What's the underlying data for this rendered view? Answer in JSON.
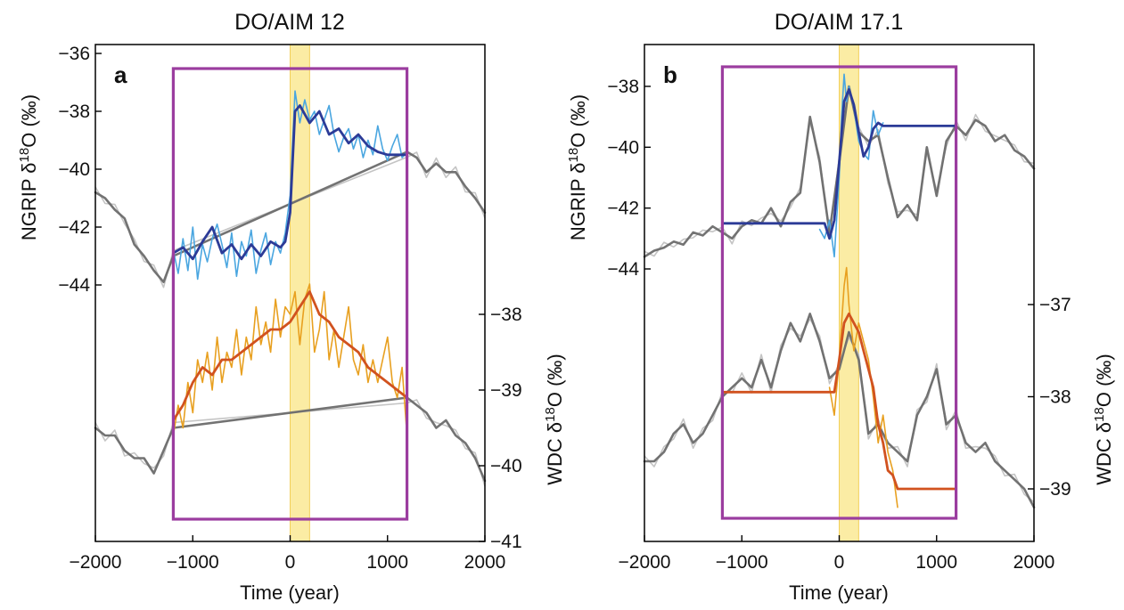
{
  "colors": {
    "ngrip_raw": "#4aa6e0",
    "ngrip_smooth": "#2c3b97",
    "wdc_raw": "#e8a020",
    "wdc_smooth": "#d1521f",
    "background_raw": "#c4c4c4",
    "background_smooth": "#6b6b6b",
    "window_box": "#9b3d9f",
    "transition_band": "#fbeca4",
    "transition_band_edge": "#f2cf5a"
  },
  "chart_data": [
    {
      "type": "line",
      "panel_letter": "a",
      "title": "DO/AIM 12",
      "xlabel": "Time (year)",
      "ylabel_left": "NGRIP δ18O (‰)",
      "ylabel_right": "WDC δ18O (‰)",
      "xlim": [
        -2000,
        2000
      ],
      "xticks": [
        -2000,
        -1000,
        0,
        1000,
        2000
      ],
      "xtick_labels": [
        "−2000",
        "−1000",
        "0",
        "1000",
        "2000"
      ],
      "left_axis": {
        "ticks": [
          -36,
          -38,
          -40,
          -42,
          -44
        ],
        "tick_labels": [
          "−36",
          "−38",
          "−40",
          "−42",
          "−44"
        ]
      },
      "right_axis": {
        "ticks": [
          -38,
          -39,
          -40,
          -41
        ],
        "tick_labels": [
          "−38",
          "−39",
          "−40",
          "−41"
        ]
      },
      "window": [
        -1200,
        1200
      ],
      "transition_band": [
        0,
        200
      ],
      "series": [
        {
          "axis": "left",
          "role": "background",
          "x": [
            -2000,
            -1900,
            -1800,
            -1700,
            -1600,
            -1500,
            -1400,
            -1300,
            -1200,
            1200,
            1300,
            1400,
            1500,
            1600,
            1700,
            1800,
            1900,
            2000
          ],
          "y": [
            -40.8,
            -41.0,
            -41.4,
            -41.7,
            -42.6,
            -43.0,
            -43.5,
            -43.9,
            -43.0,
            -39.4,
            -39.6,
            -40.1,
            -39.8,
            -40.1,
            -40.1,
            -40.6,
            -41.0,
            -41.5
          ]
        },
        {
          "axis": "left",
          "role": "raw",
          "x": [
            -1200,
            -1150,
            -1100,
            -1050,
            -1000,
            -950,
            -900,
            -850,
            -800,
            -750,
            -700,
            -650,
            -600,
            -550,
            -500,
            -450,
            -400,
            -350,
            -300,
            -250,
            -200,
            -150,
            -100,
            -50,
            0,
            50,
            100,
            150,
            200,
            250,
            300,
            350,
            400,
            450,
            500,
            550,
            600,
            650,
            700,
            750,
            800,
            850,
            900,
            950,
            1000,
            1050,
            1100,
            1150,
            1200
          ],
          "y": [
            -42.8,
            -43.6,
            -42.4,
            -43.5,
            -42.0,
            -43.8,
            -42.6,
            -43.2,
            -42.4,
            -41.9,
            -42.6,
            -43.4,
            -42.2,
            -43.7,
            -42.5,
            -43.0,
            -42.1,
            -43.6,
            -42.8,
            -42.2,
            -43.3,
            -42.5,
            -42.9,
            -42.2,
            -40.9,
            -37.3,
            -38.4,
            -37.6,
            -38.3,
            -38.0,
            -38.8,
            -38.3,
            -37.8,
            -38.8,
            -39.4,
            -38.9,
            -38.6,
            -39.3,
            -38.8,
            -39.6,
            -39.0,
            -39.5,
            -38.5,
            -39.3,
            -39.7,
            -39.2,
            -38.8,
            -39.6,
            -39.4
          ]
        },
        {
          "axis": "left",
          "role": "smooth",
          "x": [
            -1200,
            -1100,
            -1000,
            -900,
            -800,
            -700,
            -600,
            -500,
            -400,
            -300,
            -200,
            -100,
            -50,
            0,
            50,
            100,
            200,
            300,
            400,
            500,
            600,
            700,
            800,
            900,
            1000,
            1100,
            1200
          ],
          "y": [
            -42.9,
            -42.7,
            -43.1,
            -42.5,
            -42.0,
            -42.9,
            -42.6,
            -43.1,
            -42.6,
            -43.0,
            -42.5,
            -42.7,
            -42.5,
            -41.5,
            -38.0,
            -37.8,
            -38.4,
            -38.0,
            -38.8,
            -38.6,
            -39.1,
            -38.8,
            -39.2,
            -39.4,
            -39.5,
            -39.5,
            -39.5
          ]
        },
        {
          "axis": "right",
          "role": "background",
          "x": [
            -2000,
            -1900,
            -1800,
            -1700,
            -1600,
            -1500,
            -1400,
            -1300,
            -1200,
            1200,
            1300,
            1400,
            1500,
            1600,
            1700,
            1800,
            1900,
            2000
          ],
          "y": [
            -39.5,
            -39.6,
            -39.6,
            -39.8,
            -39.9,
            -39.9,
            -40.1,
            -39.8,
            -39.5,
            -39.1,
            -39.2,
            -39.3,
            -39.5,
            -39.4,
            -39.6,
            -39.7,
            -39.9,
            -40.2
          ]
        },
        {
          "axis": "right",
          "role": "raw",
          "x": [
            -1200,
            -1150,
            -1100,
            -1050,
            -1000,
            -950,
            -900,
            -850,
            -800,
            -750,
            -700,
            -650,
            -600,
            -550,
            -500,
            -450,
            -400,
            -350,
            -300,
            -250,
            -200,
            -150,
            -100,
            -50,
            0,
            50,
            100,
            150,
            200,
            250,
            300,
            350,
            400,
            450,
            500,
            550,
            600,
            650,
            700,
            750,
            800,
            850,
            900,
            950,
            1000,
            1050,
            1100,
            1150,
            1200
          ],
          "y": [
            -39.6,
            -39.2,
            -39.5,
            -38.9,
            -39.3,
            -38.6,
            -38.9,
            -38.5,
            -39.0,
            -38.3,
            -38.9,
            -38.5,
            -38.7,
            -38.2,
            -38.8,
            -38.3,
            -38.6,
            -37.9,
            -38.4,
            -38.1,
            -38.5,
            -37.8,
            -38.3,
            -37.9,
            -38.0,
            -37.7,
            -38.4,
            -37.8,
            -37.6,
            -38.5,
            -38.2,
            -37.7,
            -38.6,
            -38.2,
            -38.7,
            -38.3,
            -37.9,
            -38.6,
            -38.8,
            -38.4,
            -38.9,
            -38.6,
            -38.9,
            -38.6,
            -38.3,
            -38.9,
            -39.1,
            -38.7,
            -39.6
          ]
        },
        {
          "axis": "right",
          "role": "smooth",
          "x": [
            -1200,
            -1100,
            -1000,
            -900,
            -800,
            -700,
            -600,
            -500,
            -400,
            -300,
            -200,
            -100,
            0,
            100,
            200,
            300,
            400,
            500,
            600,
            700,
            800,
            900,
            1000,
            1100,
            1200
          ],
          "y": [
            -39.4,
            -39.2,
            -38.9,
            -38.7,
            -38.8,
            -38.6,
            -38.6,
            -38.5,
            -38.4,
            -38.3,
            -38.2,
            -38.2,
            -38.1,
            -37.9,
            -37.7,
            -38.0,
            -38.1,
            -38.3,
            -38.4,
            -38.5,
            -38.7,
            -38.8,
            -38.9,
            -39.0,
            -39.1
          ]
        }
      ]
    },
    {
      "type": "line",
      "panel_letter": "b",
      "title": "DO/AIM 17.1",
      "xlabel": "Time (year)",
      "ylabel_left": "NGRIP δ18O (‰)",
      "ylabel_right": "WDC δ18O (‰)",
      "xlim": [
        -2000,
        2000
      ],
      "xticks": [
        -2000,
        -1000,
        0,
        1000,
        2000
      ],
      "xtick_labels": [
        "−2000",
        "−1000",
        "0",
        "1000",
        "2000"
      ],
      "left_axis": {
        "ticks": [
          -38,
          -40,
          -42,
          -44
        ],
        "tick_labels": [
          "−38",
          "−40",
          "−42",
          "−44"
        ]
      },
      "right_axis": {
        "ticks": [
          -37,
          -38,
          -39
        ],
        "tick_labels": [
          "−37",
          "−38",
          "−39"
        ]
      },
      "window": [
        -1200,
        1200
      ],
      "transition_band": [
        0,
        200
      ],
      "series": [
        {
          "axis": "left",
          "role": "background",
          "x": [
            -2000,
            -1900,
            -1800,
            -1700,
            -1600,
            -1500,
            -1400,
            -1300,
            -1200,
            -1100,
            -1000,
            -900,
            -800,
            -700,
            -600,
            -500,
            -400,
            -300,
            -200,
            -100,
            0,
            100,
            200,
            300,
            400,
            500,
            600,
            700,
            800,
            900,
            1000,
            1100,
            1200,
            1300,
            1400,
            1500,
            1600,
            1700,
            1800,
            1900,
            2000
          ],
          "y": [
            -43.6,
            -43.4,
            -43.3,
            -43.1,
            -43.2,
            -42.8,
            -42.9,
            -42.6,
            -42.8,
            -43.0,
            -42.6,
            -42.4,
            -42.5,
            -42.0,
            -42.6,
            -41.8,
            -41.5,
            -39.0,
            -40.5,
            -42.8,
            -40.5,
            -38.0,
            -39.5,
            -39.8,
            -39.6,
            -41.0,
            -42.3,
            -41.9,
            -42.4,
            -40.0,
            -41.6,
            -39.8,
            -39.3,
            -39.6,
            -39.1,
            -39.3,
            -39.8,
            -39.6,
            -40.1,
            -40.3,
            -40.7
          ]
        },
        {
          "axis": "left",
          "role": "raw",
          "x": [
            -200,
            -150,
            -100,
            -50,
            0,
            25,
            50,
            75,
            100,
            150,
            200,
            250,
            300,
            350,
            400,
            450
          ],
          "y": [
            -42.7,
            -43.0,
            -42.4,
            -43.6,
            -41.0,
            -39.0,
            -37.6,
            -38.5,
            -38.0,
            -38.7,
            -39.8,
            -40.2,
            -40.4,
            -38.8,
            -39.6,
            -39.2
          ]
        },
        {
          "axis": "left",
          "role": "smooth",
          "x": [
            -1200,
            -150,
            -100,
            -50,
            0,
            50,
            100,
            150,
            200,
            250,
            300,
            350,
            400,
            450,
            1200
          ],
          "y": [
            -42.5,
            -42.5,
            -43.0,
            -42.4,
            -40.5,
            -38.5,
            -38.1,
            -38.6,
            -39.5,
            -40.3,
            -40.0,
            -39.4,
            -39.2,
            -39.3,
            -39.3
          ]
        },
        {
          "axis": "right",
          "role": "background",
          "x": [
            -2000,
            -1900,
            -1800,
            -1700,
            -1600,
            -1500,
            -1400,
            -1300,
            -1200,
            -1100,
            -1000,
            -900,
            -800,
            -700,
            -600,
            -500,
            -400,
            -300,
            -200,
            -100,
            0,
            100,
            200,
            300,
            400,
            500,
            600,
            700,
            800,
            900,
            1000,
            1100,
            1200,
            1300,
            1400,
            1500,
            1600,
            1700,
            1800,
            1900,
            2000
          ],
          "y": [
            -38.7,
            -38.7,
            -38.6,
            -38.4,
            -38.3,
            -38.5,
            -38.4,
            -38.2,
            -38.0,
            -37.9,
            -37.8,
            -37.9,
            -37.6,
            -37.9,
            -37.5,
            -37.2,
            -37.4,
            -37.1,
            -37.4,
            -37.8,
            -37.7,
            -37.3,
            -37.6,
            -38.4,
            -38.3,
            -38.5,
            -38.6,
            -38.7,
            -38.2,
            -38.0,
            -37.7,
            -38.3,
            -38.2,
            -38.5,
            -38.6,
            -38.5,
            -38.7,
            -38.8,
            -38.9,
            -39.0,
            -39.2
          ]
        },
        {
          "axis": "right",
          "role": "raw",
          "x": [
            -100,
            -50,
            0,
            25,
            50,
            75,
            100,
            150,
            200,
            250,
            300,
            350,
            400,
            450,
            500,
            550,
            600
          ],
          "y": [
            -37.9,
            -38.2,
            -37.6,
            -37.2,
            -36.8,
            -36.6,
            -37.0,
            -37.5,
            -37.2,
            -37.4,
            -37.6,
            -38.0,
            -38.5,
            -38.2,
            -38.6,
            -38.8,
            -39.2
          ]
        },
        {
          "axis": "right",
          "role": "smooth",
          "x": [
            -1200,
            -50,
            0,
            50,
            100,
            150,
            200,
            250,
            300,
            350,
            400,
            450,
            500,
            550,
            600,
            1200
          ],
          "y": [
            -37.95,
            -37.95,
            -37.6,
            -37.2,
            -37.1,
            -37.2,
            -37.3,
            -37.5,
            -37.7,
            -37.9,
            -38.3,
            -38.5,
            -38.8,
            -38.85,
            -39.0,
            -39.0
          ]
        }
      ]
    }
  ]
}
